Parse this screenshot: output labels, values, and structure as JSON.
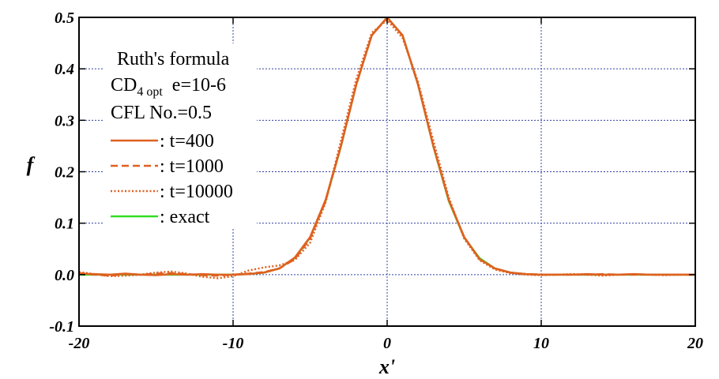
{
  "chart_data": {
    "type": "line",
    "xlabel": "x'",
    "ylabel": "f",
    "xlim": [
      -20,
      20
    ],
    "ylim": [
      -0.1,
      0.5
    ],
    "xticks": [
      -20,
      -10,
      0,
      10,
      20
    ],
    "xtick_labels": [
      "-20",
      "-10",
      "0",
      "10",
      "20"
    ],
    "yticks": [
      -0.1,
      0.0,
      0.1,
      0.2,
      0.3,
      0.4,
      0.5
    ],
    "ytick_labels": [
      "-0.1",
      "0.0",
      "0.1",
      "0.2",
      "0.3",
      "0.4",
      "0.5"
    ],
    "grid": true,
    "legend_position": "top-left",
    "annotation": {
      "line1": "Ruth's formula",
      "line2_main": "CD",
      "line2_sub": "4 opt",
      "line2_rest": "e=10-6",
      "line3": "CFL No.=0.5"
    },
    "series": [
      {
        "name": ": t=400",
        "style": "solid",
        "color": "#E06020",
        "x": [
          -20,
          -19,
          -18,
          -17,
          -16,
          -15,
          -14,
          -13,
          -12,
          -11,
          -10,
          -9,
          -8,
          -7,
          -6,
          -5,
          -4,
          -3,
          -2,
          -1,
          0,
          1,
          2,
          3,
          4,
          5,
          6,
          7,
          8,
          9,
          10,
          11,
          12,
          13,
          14,
          15,
          16,
          17,
          18,
          19,
          20
        ],
        "y": [
          0.002,
          0.001,
          0.0,
          0.002,
          0.0,
          -0.001,
          0.001,
          0.0,
          0.001,
          0.0,
          0.0,
          0.001,
          0.004,
          0.012,
          0.033,
          0.073,
          0.145,
          0.25,
          0.37,
          0.465,
          0.5,
          0.465,
          0.37,
          0.25,
          0.145,
          0.073,
          0.03,
          0.012,
          0.004,
          0.001,
          0.0,
          0.0,
          0.0,
          0.001,
          0.0,
          0.0,
          0.001,
          0.0,
          0.0,
          0.0,
          0.0
        ]
      },
      {
        "name": ": t=1000",
        "style": "dashed",
        "color": "#E06020",
        "x": [
          -20,
          -19,
          -18,
          -17,
          -16,
          -15,
          -14,
          -13,
          -12,
          -11,
          -10,
          -9,
          -8,
          -7,
          -6,
          -5,
          -4,
          -3,
          -2,
          -1,
          0,
          1,
          2,
          3,
          4,
          5,
          6,
          7,
          8,
          9,
          10,
          11,
          12,
          13,
          14,
          15,
          16,
          17,
          18,
          19,
          20
        ],
        "y": [
          0.003,
          0.0,
          -0.002,
          0.001,
          0.0,
          0.002,
          0.003,
          0.001,
          -0.001,
          -0.002,
          0.0,
          0.002,
          0.005,
          0.012,
          0.03,
          0.07,
          0.143,
          0.25,
          0.37,
          0.465,
          0.499,
          0.465,
          0.37,
          0.25,
          0.145,
          0.073,
          0.03,
          0.012,
          0.004,
          0.001,
          0.0,
          0.0,
          0.0,
          0.0,
          0.001,
          0.0,
          0.0,
          0.0,
          0.0,
          0.0,
          0.0
        ]
      },
      {
        "name": ": t=10000",
        "style": "dotted",
        "color": "#E06020",
        "x": [
          -20,
          -19,
          -18,
          -17,
          -16,
          -15,
          -14,
          -13,
          -12,
          -11,
          -10,
          -9,
          -8,
          -7,
          -6,
          -5,
          -4,
          -3,
          -2,
          -1,
          0,
          1,
          2,
          3,
          4,
          5,
          6,
          7,
          8,
          9,
          10,
          11,
          12,
          13,
          14,
          15,
          16,
          17,
          18,
          19,
          20
        ],
        "y": [
          0.005,
          0.001,
          -0.003,
          -0.002,
          0.0,
          0.004,
          0.006,
          0.002,
          -0.004,
          -0.007,
          -0.003,
          0.008,
          0.014,
          0.018,
          0.028,
          0.062,
          0.14,
          0.26,
          0.38,
          0.47,
          0.495,
          0.46,
          0.375,
          0.26,
          0.15,
          0.07,
          0.028,
          0.01,
          0.003,
          0.0,
          -0.001,
          0.0,
          0.001,
          0.0,
          -0.002,
          0.0,
          0.001,
          0.0,
          -0.001,
          0.0,
          0.0
        ]
      },
      {
        "name": ": exact",
        "style": "solid",
        "color": "#33DD22",
        "x": [
          -20,
          -19,
          -18,
          -17,
          -16,
          -15,
          -14,
          -13,
          -12,
          -11,
          -10,
          -9,
          -8,
          -7,
          -6,
          -5,
          -4,
          -3,
          -2,
          -1,
          0,
          1,
          2,
          3,
          4,
          5,
          6,
          7,
          8,
          9,
          10,
          11,
          12,
          13,
          14,
          15,
          16,
          17,
          18,
          19,
          20
        ],
        "y": [
          0.0,
          0.0,
          0.0,
          0.0,
          0.0,
          0.0,
          0.0,
          0.0,
          0.0,
          0.0,
          0.0,
          0.001,
          0.004,
          0.012,
          0.032,
          0.072,
          0.143,
          0.249,
          0.37,
          0.465,
          0.5,
          0.465,
          0.37,
          0.249,
          0.143,
          0.072,
          0.032,
          0.012,
          0.004,
          0.001,
          0.0,
          0.0,
          0.0,
          0.0,
          0.0,
          0.0,
          0.0,
          0.0,
          0.0,
          0.0,
          0.0
        ]
      }
    ]
  }
}
